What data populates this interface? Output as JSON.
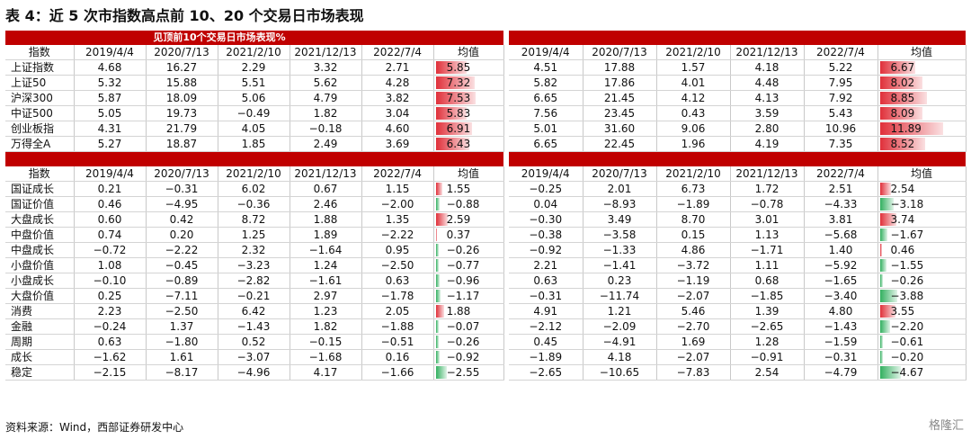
{
  "title": "表 4：近 5 次市指数高点前 10、20 个交易日市场表现",
  "banner": "见顶前10个交易日市场表现%",
  "dates": [
    "2019/4/4",
    "2020/7/13",
    "2021/2/10",
    "2021/12/13",
    "2022/7/4"
  ],
  "avg_label": "均值",
  "index_header": "指数",
  "top": {
    "rows": [
      {
        "name": "上证指数",
        "l": [
          "4.68",
          "16.27",
          "2.29",
          "3.32",
          "2.71"
        ],
        "la": "5.85",
        "lav": 5.85,
        "r": [
          "4.51",
          "17.88",
          "1.57",
          "4.18",
          "5.22"
        ],
        "ra": "6.67",
        "rav": 6.67
      },
      {
        "name": "上证50",
        "l": [
          "5.32",
          "15.88",
          "5.51",
          "5.62",
          "4.28"
        ],
        "la": "7.32",
        "lav": 7.32,
        "r": [
          "5.82",
          "17.86",
          "4.01",
          "4.48",
          "7.95"
        ],
        "ra": "8.02",
        "rav": 8.02
      },
      {
        "name": "沪深300",
        "l": [
          "5.87",
          "18.09",
          "5.06",
          "4.79",
          "3.82"
        ],
        "la": "7.53",
        "lav": 7.53,
        "r": [
          "6.65",
          "21.45",
          "4.12",
          "4.13",
          "7.92"
        ],
        "ra": "8.85",
        "rav": 8.85
      },
      {
        "name": "中证500",
        "l": [
          "5.05",
          "19.73",
          "−0.49",
          "1.82",
          "3.04"
        ],
        "la": "5.83",
        "lav": 5.83,
        "r": [
          "7.56",
          "23.45",
          "0.43",
          "3.59",
          "5.43"
        ],
        "ra": "8.09",
        "rav": 8.09
      },
      {
        "name": "创业板指",
        "l": [
          "4.31",
          "21.79",
          "4.05",
          "−0.18",
          "4.60"
        ],
        "la": "6.91",
        "lav": 6.91,
        "r": [
          "5.01",
          "31.60",
          "9.06",
          "2.80",
          "10.96"
        ],
        "ra": "11.89",
        "rav": 11.89
      },
      {
        "name": "万得全A",
        "l": [
          "5.27",
          "18.87",
          "1.85",
          "2.49",
          "3.69"
        ],
        "la": "6.43",
        "lav": 6.43,
        "r": [
          "6.65",
          "22.45",
          "1.96",
          "4.19",
          "7.35"
        ],
        "ra": "8.52",
        "rav": 8.52
      }
    ]
  },
  "bottom": {
    "rows": [
      {
        "name": "国证成长",
        "l": [
          "0.21",
          "−0.31",
          "6.02",
          "0.67",
          "1.15"
        ],
        "la": "1.55",
        "lav": 1.55,
        "r": [
          "−0.25",
          "2.01",
          "6.73",
          "1.72",
          "2.51"
        ],
        "ra": "2.54",
        "rav": 2.54
      },
      {
        "name": "国证价值",
        "l": [
          "0.46",
          "−4.95",
          "−0.36",
          "2.46",
          "−2.00"
        ],
        "la": "−0.88",
        "lav": -0.88,
        "r": [
          "0.04",
          "−8.93",
          "−1.89",
          "−0.78",
          "−4.33"
        ],
        "ra": "−3.18",
        "rav": -3.18
      },
      {
        "name": "大盘成长",
        "l": [
          "0.60",
          "0.42",
          "8.72",
          "1.88",
          "1.35"
        ],
        "la": "2.59",
        "lav": 2.59,
        "r": [
          "−0.30",
          "3.49",
          "8.70",
          "3.01",
          "3.81"
        ],
        "ra": "3.74",
        "rav": 3.74
      },
      {
        "name": "中盘价值",
        "l": [
          "0.74",
          "0.20",
          "1.25",
          "1.89",
          "−2.22"
        ],
        "la": "0.37",
        "lav": 0.37,
        "r": [
          "−0.38",
          "−3.58",
          "0.15",
          "1.13",
          "−5.68"
        ],
        "ra": "−1.67",
        "rav": -1.67
      },
      {
        "name": "中盘成长",
        "l": [
          "−0.72",
          "−2.22",
          "2.32",
          "−1.64",
          "0.95"
        ],
        "la": "−0.26",
        "lav": -0.26,
        "r": [
          "−0.92",
          "−1.33",
          "4.86",
          "−1.71",
          "1.40"
        ],
        "ra": "0.46",
        "rav": 0.46
      },
      {
        "name": "小盘价值",
        "l": [
          "1.08",
          "−0.45",
          "−3.23",
          "1.24",
          "−2.50"
        ],
        "la": "−0.77",
        "lav": -0.77,
        "r": [
          "2.21",
          "−1.41",
          "−3.72",
          "1.11",
          "−5.92"
        ],
        "ra": "−1.55",
        "rav": -1.55
      },
      {
        "name": "小盘成长",
        "l": [
          "−0.10",
          "−0.89",
          "−2.82",
          "−1.61",
          "0.63"
        ],
        "la": "−0.96",
        "lav": -0.96,
        "r": [
          "0.63",
          "0.23",
          "−1.19",
          "0.68",
          "−1.65"
        ],
        "ra": "−0.26",
        "rav": -0.26
      },
      {
        "name": "大盘价值",
        "l": [
          "0.25",
          "−7.11",
          "−0.21",
          "2.97",
          "−1.78"
        ],
        "la": "−1.17",
        "lav": -1.17,
        "r": [
          "−0.31",
          "−11.74",
          "−2.07",
          "−1.85",
          "−3.40"
        ],
        "ra": "−3.88",
        "rav": -3.88
      },
      {
        "name": "消费",
        "l": [
          "2.23",
          "−2.50",
          "6.42",
          "1.23",
          "2.05"
        ],
        "la": "1.88",
        "lav": 1.88,
        "r": [
          "4.91",
          "1.21",
          "5.46",
          "1.39",
          "4.80"
        ],
        "ra": "3.55",
        "rav": 3.55
      },
      {
        "name": "金融",
        "l": [
          "−0.24",
          "1.37",
          "−1.43",
          "1.82",
          "−1.88"
        ],
        "la": "−0.07",
        "lav": -0.07,
        "r": [
          "−2.12",
          "−2.09",
          "−2.70",
          "−2.65",
          "−1.43"
        ],
        "ra": "−2.20",
        "rav": -2.2
      },
      {
        "name": "周期",
        "l": [
          "0.63",
          "−1.80",
          "0.52",
          "−0.15",
          "−0.51"
        ],
        "la": "−0.26",
        "lav": -0.26,
        "r": [
          "0.45",
          "−4.91",
          "1.69",
          "1.28",
          "−1.59"
        ],
        "ra": "−0.61",
        "rav": -0.61
      },
      {
        "name": "成长",
        "l": [
          "−1.62",
          "1.61",
          "−3.07",
          "−1.68",
          "0.16"
        ],
        "la": "−0.92",
        "lav": -0.92,
        "r": [
          "−1.89",
          "4.18",
          "−2.07",
          "−0.91",
          "−0.31"
        ],
        "ra": "−0.20",
        "rav": -0.2
      },
      {
        "name": "稳定",
        "l": [
          "−2.15",
          "−8.17",
          "−4.96",
          "4.17",
          "−1.66"
        ],
        "la": "−2.55",
        "lav": -2.55,
        "r": [
          "−2.65",
          "−10.65",
          "−7.83",
          "2.54",
          "−4.79"
        ],
        "ra": "−4.67",
        "rav": -4.67
      }
    ]
  },
  "colors": {
    "header_red": "#c00000",
    "pos_bar": "#e0303a",
    "neg_bar": "#33b060"
  },
  "source": "资料来源：Wind，西部证券研发中心",
  "logo": "格隆汇"
}
